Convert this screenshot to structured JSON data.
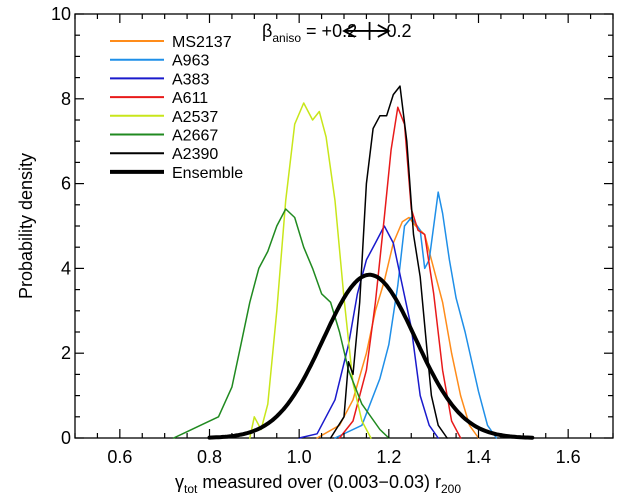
{
  "chart_data": {
    "type": "line",
    "xlabel_main": "γ",
    "xlabel_sub1": "tot",
    "xlabel_mid": " measured over (0.003−0.03) r",
    "xlabel_sub2": "200",
    "ylabel": "Probability density",
    "xlim": [
      0.5,
      1.7
    ],
    "ylim": [
      0,
      10
    ],
    "xticks": [
      0.6,
      0.8,
      1.0,
      1.2,
      1.4,
      1.6
    ],
    "xtick_labels": [
      "0.6",
      "0.8",
      "1.0",
      "1.2",
      "1.4",
      "1.6"
    ],
    "yticks": [
      0,
      2,
      4,
      6,
      8,
      10
    ],
    "ytick_labels": [
      "0",
      "2",
      "4",
      "6",
      "8",
      "10"
    ],
    "legend_position": "top-left",
    "annotation": {
      "beta": "β",
      "beta_sub": "aniso",
      "text_left": " = +0.2",
      "text_right": "−0.2",
      "arrow_from": 1.1,
      "arrow_to": 1.2,
      "arrow_mark": 1.157,
      "arrow_y": 9.6
    },
    "series": [
      {
        "name": "MS2137",
        "color": "#ff8c1a",
        "width": 1.5,
        "points": [
          [
            1.04,
            0
          ],
          [
            1.09,
            0.3
          ],
          [
            1.12,
            0.9
          ],
          [
            1.15,
            2.0
          ],
          [
            1.17,
            3.0
          ],
          [
            1.19,
            3.7
          ],
          [
            1.21,
            4.6
          ],
          [
            1.23,
            5.1
          ],
          [
            1.245,
            5.2
          ],
          [
            1.26,
            5.0
          ],
          [
            1.28,
            4.8
          ],
          [
            1.3,
            4.0
          ],
          [
            1.32,
            3.2
          ],
          [
            1.34,
            2.0
          ],
          [
            1.36,
            1.0
          ],
          [
            1.38,
            0.3
          ],
          [
            1.4,
            0
          ]
        ]
      },
      {
        "name": "A963",
        "color": "#1f8fe8",
        "width": 1.5,
        "points": [
          [
            1.08,
            0
          ],
          [
            1.14,
            0.3
          ],
          [
            1.18,
            1.4
          ],
          [
            1.2,
            2.2
          ],
          [
            1.22,
            3.6
          ],
          [
            1.235,
            5.0
          ],
          [
            1.25,
            5.2
          ],
          [
            1.27,
            4.9
          ],
          [
            1.28,
            4.0
          ],
          [
            1.29,
            4.2
          ],
          [
            1.3,
            5.0
          ],
          [
            1.31,
            5.8
          ],
          [
            1.32,
            5.3
          ],
          [
            1.335,
            4.2
          ],
          [
            1.35,
            3.3
          ],
          [
            1.37,
            2.5
          ],
          [
            1.4,
            1.1
          ],
          [
            1.42,
            0.3
          ],
          [
            1.44,
            0
          ]
        ]
      },
      {
        "name": "A383",
        "color": "#1a1acc",
        "width": 1.5,
        "points": [
          [
            1.0,
            0
          ],
          [
            1.04,
            0.1
          ],
          [
            1.08,
            0.9
          ],
          [
            1.11,
            2.2
          ],
          [
            1.13,
            3.4
          ],
          [
            1.15,
            4.2
          ],
          [
            1.17,
            4.6
          ],
          [
            1.19,
            5.0
          ],
          [
            1.21,
            4.6
          ],
          [
            1.23,
            3.6
          ],
          [
            1.25,
            2.6
          ],
          [
            1.27,
            1.0
          ],
          [
            1.29,
            0.3
          ],
          [
            1.31,
            0
          ]
        ]
      },
      {
        "name": "A611",
        "color": "#e81a1a",
        "width": 1.5,
        "points": [
          [
            1.09,
            0
          ],
          [
            1.12,
            0.4
          ],
          [
            1.15,
            1.6
          ],
          [
            1.17,
            3.2
          ],
          [
            1.19,
            5.2
          ],
          [
            1.205,
            6.8
          ],
          [
            1.22,
            7.8
          ],
          [
            1.235,
            7.4
          ],
          [
            1.25,
            5.4
          ],
          [
            1.265,
            4.9
          ],
          [
            1.28,
            4.8
          ],
          [
            1.3,
            3.4
          ],
          [
            1.32,
            1.6
          ],
          [
            1.34,
            0.4
          ],
          [
            1.36,
            0
          ]
        ]
      },
      {
        "name": "A2537",
        "color": "#c8e61a",
        "width": 1.5,
        "points": [
          [
            0.89,
            0
          ],
          [
            0.9,
            0.5
          ],
          [
            0.915,
            0.2
          ],
          [
            0.93,
            0.8
          ],
          [
            0.95,
            3.0
          ],
          [
            0.97,
            5.6
          ],
          [
            0.99,
            7.4
          ],
          [
            1.01,
            7.9
          ],
          [
            1.03,
            7.5
          ],
          [
            1.045,
            7.7
          ],
          [
            1.06,
            7.1
          ],
          [
            1.08,
            5.6
          ],
          [
            1.1,
            3.3
          ],
          [
            1.12,
            1.3
          ],
          [
            1.14,
            0.4
          ],
          [
            1.16,
            0
          ]
        ]
      },
      {
        "name": "A2667",
        "color": "#208a20",
        "width": 1.5,
        "points": [
          [
            0.72,
            0
          ],
          [
            0.74,
            0.1
          ],
          [
            0.78,
            0.3
          ],
          [
            0.82,
            0.5
          ],
          [
            0.85,
            1.2
          ],
          [
            0.87,
            2.2
          ],
          [
            0.89,
            3.2
          ],
          [
            0.91,
            4.0
          ],
          [
            0.93,
            4.4
          ],
          [
            0.95,
            5.0
          ],
          [
            0.97,
            5.4
          ],
          [
            0.99,
            5.2
          ],
          [
            1.01,
            4.5
          ],
          [
            1.03,
            4.0
          ],
          [
            1.05,
            3.4
          ],
          [
            1.07,
            3.2
          ],
          [
            1.09,
            2.5
          ],
          [
            1.11,
            1.6
          ],
          [
            1.14,
            0.8
          ],
          [
            1.18,
            0.2
          ],
          [
            1.2,
            0
          ]
        ]
      },
      {
        "name": "A2390",
        "color": "#000000",
        "width": 1.5,
        "points": [
          [
            1.07,
            0
          ],
          [
            1.1,
            0.5
          ],
          [
            1.11,
            1.8
          ],
          [
            1.12,
            1.5
          ],
          [
            1.135,
            3.2
          ],
          [
            1.15,
            6.0
          ],
          [
            1.165,
            7.3
          ],
          [
            1.18,
            7.6
          ],
          [
            1.195,
            7.6
          ],
          [
            1.21,
            8.1
          ],
          [
            1.225,
            8.3
          ],
          [
            1.24,
            7.0
          ],
          [
            1.255,
            4.8
          ],
          [
            1.27,
            3.8
          ],
          [
            1.285,
            2.1
          ],
          [
            1.295,
            1.0
          ],
          [
            1.31,
            0.3
          ],
          [
            1.33,
            0
          ]
        ]
      },
      {
        "name": "Ensemble",
        "color": "#000000",
        "width": 4,
        "gaussian": {
          "mu": 1.157,
          "sigma": 0.103,
          "peak": 3.85,
          "from": 0.8,
          "to": 1.52
        }
      }
    ]
  }
}
